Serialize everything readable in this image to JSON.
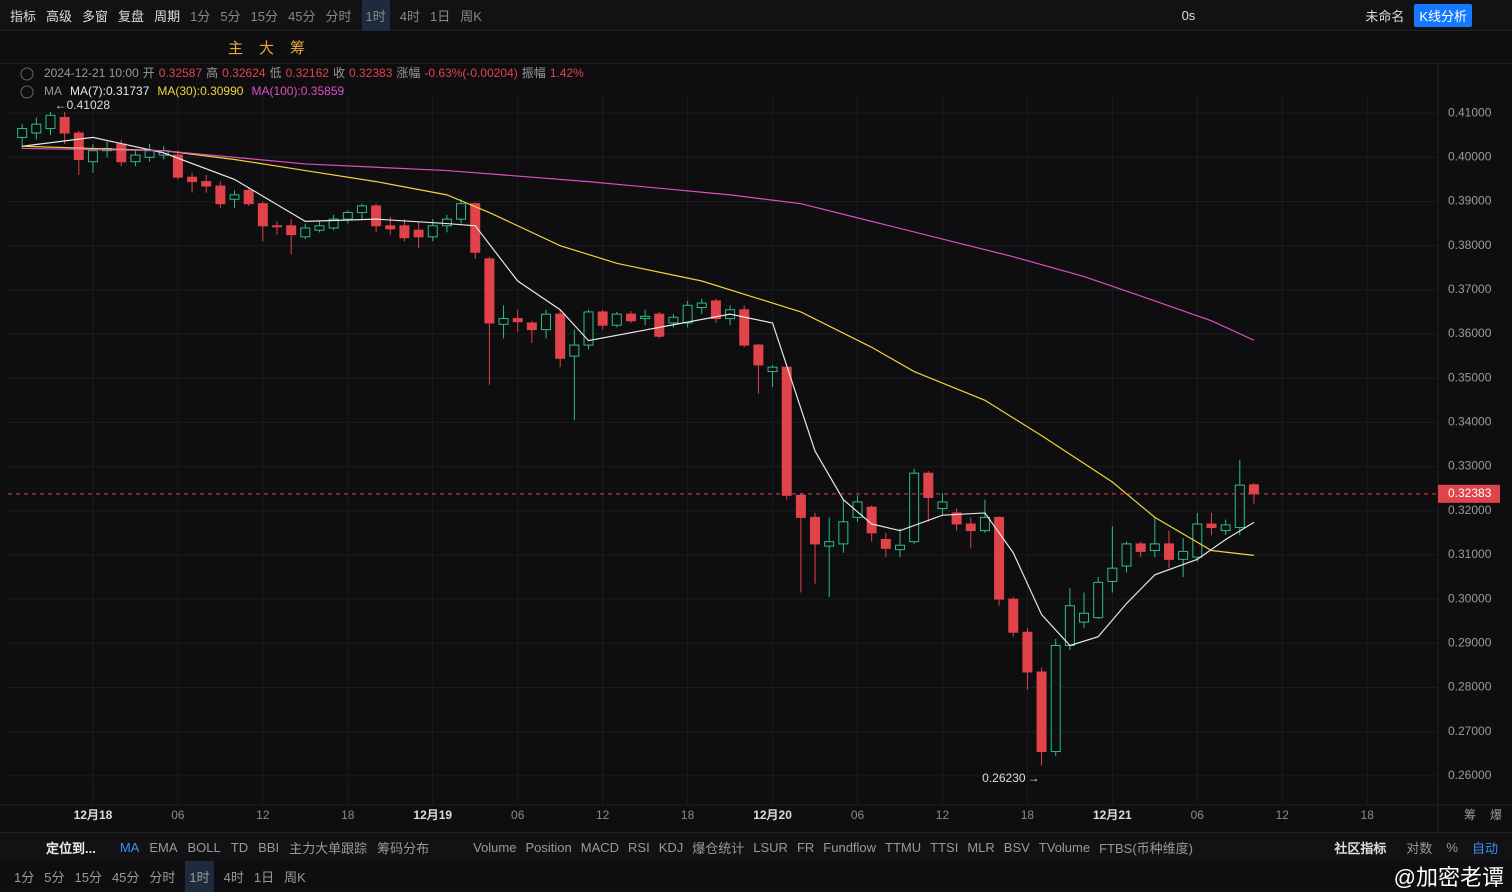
{
  "toolbar": {
    "left": [
      "指标",
      "高级",
      "多窗",
      "复盘",
      "周期"
    ],
    "periods": [
      "1分",
      "5分",
      "15分",
      "45分",
      "分时",
      "1时",
      "4时",
      "1日",
      "周K"
    ],
    "active_period_index": 5,
    "right": [
      "0s",
      "未命名",
      "K线分析"
    ]
  },
  "drawing_toolbar": {
    "labels": [
      "主",
      "大",
      "筹"
    ]
  },
  "info": {
    "time": "2024-12-21 10:00",
    "labels": [
      "开",
      "高",
      "低",
      "收"
    ],
    "change_label": "涨幅",
    "change": "-0.63%(-0.00204)",
    "amp_label": "振幅",
    "amp": "1.42%",
    "ma_label": "MA"
  },
  "chart_data": {
    "type": "candlestick",
    "up_color": "#2ebd85",
    "down_color": "#e0434a",
    "xlim": [
      -1,
      100
    ],
    "ylim": [
      0.2534,
      0.4141
    ],
    "xticks": [
      {
        "value": 5,
        "label": "12月18"
      },
      {
        "value": 11,
        "label": "06"
      },
      {
        "value": 17,
        "label": "12"
      },
      {
        "value": 23,
        "label": "18"
      },
      {
        "value": 29,
        "label": "12月19"
      },
      {
        "value": 35,
        "label": "06"
      },
      {
        "value": 41,
        "label": "12"
      },
      {
        "value": 47,
        "label": "18"
      },
      {
        "value": 53,
        "label": "12月20"
      },
      {
        "value": 59,
        "label": "06"
      },
      {
        "value": 65,
        "label": "12"
      },
      {
        "value": 71,
        "label": "18"
      },
      {
        "value": 77,
        "label": "12月21"
      },
      {
        "value": 83,
        "label": "06"
      },
      {
        "value": 89,
        "label": "12"
      },
      {
        "value": 95,
        "label": "18"
      }
    ],
    "yticks": [
      {
        "value": 0.41,
        "label": "0.41000"
      },
      {
        "value": 0.4,
        "label": "0.40000"
      },
      {
        "value": 0.39,
        "label": "0.39000"
      },
      {
        "value": 0.38,
        "label": "0.38000"
      },
      {
        "value": 0.37,
        "label": "0.37000"
      },
      {
        "value": 0.36,
        "label": "0.36000"
      },
      {
        "value": 0.35,
        "label": "0.35000"
      },
      {
        "value": 0.34,
        "label": "0.34000"
      },
      {
        "value": 0.33,
        "label": "0.33000"
      },
      {
        "value": 0.32,
        "label": "0.32000"
      },
      {
        "value": 0.31,
        "label": "0.31000"
      },
      {
        "value": 0.3,
        "label": "0.30000"
      },
      {
        "value": 0.29,
        "label": "0.29000"
      },
      {
        "value": 0.28,
        "label": "0.28000"
      },
      {
        "value": 0.27,
        "label": "0.27000"
      },
      {
        "value": 0.26,
        "label": "0.26000"
      }
    ],
    "grid": true,
    "annotations": [
      {
        "index": 3,
        "value": 0.41028,
        "label": "0.41028",
        "side": "right"
      },
      {
        "index": 72,
        "value": 0.2623,
        "label": "0.26230",
        "side": "left"
      }
    ],
    "candles": [
      {
        "open": 0.4045,
        "high": 0.4075,
        "low": 0.402,
        "close": 0.4065
      },
      {
        "open": 0.4055,
        "high": 0.409,
        "low": 0.404,
        "close": 0.4075
      },
      {
        "open": 0.4065,
        "high": 0.4103,
        "low": 0.405,
        "close": 0.4095
      },
      {
        "open": 0.409,
        "high": 0.41028,
        "low": 0.403,
        "close": 0.4055
      },
      {
        "open": 0.4055,
        "high": 0.406,
        "low": 0.396,
        "close": 0.3995
      },
      {
        "open": 0.399,
        "high": 0.403,
        "low": 0.3965,
        "close": 0.4015
      },
      {
        "open": 0.4015,
        "high": 0.4035,
        "low": 0.4,
        "close": 0.402
      },
      {
        "open": 0.403,
        "high": 0.404,
        "low": 0.398,
        "close": 0.399
      },
      {
        "open": 0.399,
        "high": 0.4015,
        "low": 0.398,
        "close": 0.4005
      },
      {
        "open": 0.4,
        "high": 0.403,
        "low": 0.399,
        "close": 0.4015
      },
      {
        "open": 0.4005,
        "high": 0.4025,
        "low": 0.3995,
        "close": 0.4015
      },
      {
        "open": 0.4005,
        "high": 0.4015,
        "low": 0.395,
        "close": 0.3955
      },
      {
        "open": 0.3955,
        "high": 0.3965,
        "low": 0.392,
        "close": 0.3945
      },
      {
        "open": 0.3945,
        "high": 0.396,
        "low": 0.392,
        "close": 0.3935
      },
      {
        "open": 0.3935,
        "high": 0.3945,
        "low": 0.3885,
        "close": 0.3895
      },
      {
        "open": 0.3905,
        "high": 0.3925,
        "low": 0.3885,
        "close": 0.3915
      },
      {
        "open": 0.3925,
        "high": 0.393,
        "low": 0.389,
        "close": 0.3895
      },
      {
        "open": 0.3895,
        "high": 0.39,
        "low": 0.381,
        "close": 0.3845
      },
      {
        "open": 0.3845,
        "high": 0.3855,
        "low": 0.3825,
        "close": 0.3843
      },
      {
        "open": 0.3845,
        "high": 0.386,
        "low": 0.378,
        "close": 0.3825
      },
      {
        "open": 0.382,
        "high": 0.385,
        "low": 0.3815,
        "close": 0.384
      },
      {
        "open": 0.3835,
        "high": 0.3855,
        "low": 0.383,
        "close": 0.3845
      },
      {
        "open": 0.384,
        "high": 0.387,
        "low": 0.3835,
        "close": 0.386
      },
      {
        "open": 0.386,
        "high": 0.388,
        "low": 0.385,
        "close": 0.3875
      },
      {
        "open": 0.3875,
        "high": 0.3895,
        "low": 0.386,
        "close": 0.389
      },
      {
        "open": 0.389,
        "high": 0.3895,
        "low": 0.383,
        "close": 0.3845
      },
      {
        "open": 0.3845,
        "high": 0.3865,
        "low": 0.3825,
        "close": 0.3838
      },
      {
        "open": 0.3845,
        "high": 0.386,
        "low": 0.381,
        "close": 0.3818
      },
      {
        "open": 0.3835,
        "high": 0.3855,
        "low": 0.3795,
        "close": 0.382
      },
      {
        "open": 0.382,
        "high": 0.386,
        "low": 0.381,
        "close": 0.3845
      },
      {
        "open": 0.3845,
        "high": 0.387,
        "low": 0.383,
        "close": 0.386
      },
      {
        "open": 0.386,
        "high": 0.3905,
        "low": 0.385,
        "close": 0.3895
      },
      {
        "open": 0.3895,
        "high": 0.3898,
        "low": 0.377,
        "close": 0.3785
      },
      {
        "open": 0.377,
        "high": 0.3775,
        "low": 0.3485,
        "close": 0.3625
      },
      {
        "open": 0.3622,
        "high": 0.3665,
        "low": 0.359,
        "close": 0.3635
      },
      {
        "open": 0.3635,
        "high": 0.3655,
        "low": 0.3605,
        "close": 0.3628
      },
      {
        "open": 0.3625,
        "high": 0.363,
        "low": 0.358,
        "close": 0.361
      },
      {
        "open": 0.361,
        "high": 0.3655,
        "low": 0.359,
        "close": 0.3645
      },
      {
        "open": 0.3645,
        "high": 0.3655,
        "low": 0.3525,
        "close": 0.3545
      },
      {
        "open": 0.355,
        "high": 0.361,
        "low": 0.3405,
        "close": 0.3575
      },
      {
        "open": 0.3575,
        "high": 0.3655,
        "low": 0.3565,
        "close": 0.365
      },
      {
        "open": 0.365,
        "high": 0.3655,
        "low": 0.361,
        "close": 0.362
      },
      {
        "open": 0.362,
        "high": 0.365,
        "low": 0.3615,
        "close": 0.3645
      },
      {
        "open": 0.3645,
        "high": 0.3652,
        "low": 0.3625,
        "close": 0.363
      },
      {
        "open": 0.3635,
        "high": 0.3655,
        "low": 0.362,
        "close": 0.364
      },
      {
        "open": 0.3645,
        "high": 0.365,
        "low": 0.359,
        "close": 0.3595
      },
      {
        "open": 0.3625,
        "high": 0.3645,
        "low": 0.3615,
        "close": 0.3638
      },
      {
        "open": 0.3625,
        "high": 0.3675,
        "low": 0.3615,
        "close": 0.3665
      },
      {
        "open": 0.366,
        "high": 0.368,
        "low": 0.3645,
        "close": 0.367
      },
      {
        "open": 0.3675,
        "high": 0.368,
        "low": 0.3625,
        "close": 0.3635
      },
      {
        "open": 0.3635,
        "high": 0.3665,
        "low": 0.362,
        "close": 0.3655
      },
      {
        "open": 0.3655,
        "high": 0.3665,
        "low": 0.357,
        "close": 0.3575
      },
      {
        "open": 0.3575,
        "high": 0.3578,
        "low": 0.3465,
        "close": 0.353
      },
      {
        "open": 0.3515,
        "high": 0.353,
        "low": 0.348,
        "close": 0.3525
      },
      {
        "open": 0.3525,
        "high": 0.3525,
        "low": 0.3225,
        "close": 0.3235
      },
      {
        "open": 0.3235,
        "high": 0.324,
        "low": 0.3015,
        "close": 0.3185
      },
      {
        "open": 0.3185,
        "high": 0.3195,
        "low": 0.3035,
        "close": 0.3125
      },
      {
        "open": 0.312,
        "high": 0.3185,
        "low": 0.3005,
        "close": 0.313
      },
      {
        "open": 0.3125,
        "high": 0.3225,
        "low": 0.3105,
        "close": 0.3175
      },
      {
        "open": 0.3185,
        "high": 0.3235,
        "low": 0.3175,
        "close": 0.322
      },
      {
        "open": 0.3208,
        "high": 0.3212,
        "low": 0.313,
        "close": 0.315
      },
      {
        "open": 0.3135,
        "high": 0.315,
        "low": 0.3095,
        "close": 0.3115
      },
      {
        "open": 0.3112,
        "high": 0.316,
        "low": 0.3095,
        "close": 0.3122
      },
      {
        "open": 0.313,
        "high": 0.3295,
        "low": 0.3125,
        "close": 0.3285
      },
      {
        "open": 0.3285,
        "high": 0.329,
        "low": 0.3175,
        "close": 0.323
      },
      {
        "open": 0.3205,
        "high": 0.324,
        "low": 0.319,
        "close": 0.322
      },
      {
        "open": 0.3195,
        "high": 0.3205,
        "low": 0.3155,
        "close": 0.317
      },
      {
        "open": 0.317,
        "high": 0.3185,
        "low": 0.3115,
        "close": 0.3155
      },
      {
        "open": 0.3155,
        "high": 0.3225,
        "low": 0.315,
        "close": 0.3185
      },
      {
        "open": 0.3185,
        "high": 0.3187,
        "low": 0.2985,
        "close": 0.3
      },
      {
        "open": 0.3,
        "high": 0.3005,
        "low": 0.2915,
        "close": 0.2925
      },
      {
        "open": 0.2925,
        "high": 0.2935,
        "low": 0.2795,
        "close": 0.2835
      },
      {
        "open": 0.2835,
        "high": 0.2845,
        "low": 0.2623,
        "close": 0.2655
      },
      {
        "open": 0.2655,
        "high": 0.291,
        "low": 0.2645,
        "close": 0.2895
      },
      {
        "open": 0.2895,
        "high": 0.3025,
        "low": 0.2885,
        "close": 0.2985
      },
      {
        "open": 0.2948,
        "high": 0.3015,
        "low": 0.2935,
        "close": 0.2968
      },
      {
        "open": 0.2958,
        "high": 0.305,
        "low": 0.2955,
        "close": 0.3038
      },
      {
        "open": 0.304,
        "high": 0.3165,
        "low": 0.3015,
        "close": 0.307
      },
      {
        "open": 0.3075,
        "high": 0.313,
        "low": 0.306,
        "close": 0.3125
      },
      {
        "open": 0.3125,
        "high": 0.313,
        "low": 0.3095,
        "close": 0.3108
      },
      {
        "open": 0.311,
        "high": 0.3185,
        "low": 0.3095,
        "close": 0.3125
      },
      {
        "open": 0.3125,
        "high": 0.3155,
        "low": 0.307,
        "close": 0.309
      },
      {
        "open": 0.309,
        "high": 0.3138,
        "low": 0.305,
        "close": 0.3108
      },
      {
        "open": 0.3095,
        "high": 0.3195,
        "low": 0.3085,
        "close": 0.317
      },
      {
        "open": 0.317,
        "high": 0.3195,
        "low": 0.3145,
        "close": 0.3162
      },
      {
        "open": 0.3155,
        "high": 0.318,
        "low": 0.3145,
        "close": 0.3168
      },
      {
        "open": 0.3162,
        "high": 0.3315,
        "low": 0.3145,
        "close": 0.3258
      },
      {
        "open": 0.32587,
        "high": 0.32624,
        "low": 0.32162,
        "close": 0.32383
      }
    ],
    "ma": [
      {
        "name": "MA(7):0.31737",
        "color": "#e6e6e6",
        "x": [
          0,
          5,
          10,
          15,
          20,
          25,
          30,
          32,
          35,
          38,
          40,
          45,
          50,
          53,
          56,
          58,
          60,
          62,
          65,
          68,
          70,
          72,
          74,
          76,
          78,
          80,
          83,
          85,
          87
        ],
        "values": [
          0.4025,
          0.4045,
          0.401,
          0.395,
          0.3855,
          0.386,
          0.385,
          0.3845,
          0.372,
          0.3655,
          0.3585,
          0.3615,
          0.3645,
          0.3625,
          0.3335,
          0.3225,
          0.317,
          0.3155,
          0.319,
          0.3195,
          0.3105,
          0.2965,
          0.2895,
          0.2915,
          0.299,
          0.3055,
          0.309,
          0.3135,
          0.31737
        ]
      },
      {
        "name": "MA(30):0.30990",
        "color": "#f0d43a",
        "x": [
          0,
          10,
          15,
          20,
          25,
          30,
          33,
          38,
          42,
          48,
          52,
          55,
          60,
          63,
          68,
          72,
          77,
          80,
          84,
          87
        ],
        "values": [
          0.4025,
          0.4015,
          0.3995,
          0.397,
          0.3945,
          0.3915,
          0.3875,
          0.38,
          0.376,
          0.372,
          0.368,
          0.365,
          0.357,
          0.3515,
          0.345,
          0.337,
          0.3265,
          0.3185,
          0.311,
          0.3099
        ]
      },
      {
        "name": "MA(100):0.35859",
        "color": "#d94fc4",
        "x": [
          0,
          10,
          20,
          30,
          40,
          50,
          55,
          60,
          65,
          70,
          75,
          80,
          84,
          87
        ],
        "values": [
          0.402,
          0.4015,
          0.3985,
          0.397,
          0.3945,
          0.3915,
          0.3895,
          0.3855,
          0.3815,
          0.3775,
          0.373,
          0.3675,
          0.363,
          0.35859
        ]
      }
    ]
  },
  "indicator_bar": {
    "locate": "定位到...",
    "main": [
      "MA",
      "EMA",
      "BOLL",
      "TD",
      "BBI",
      "主力大单跟踪",
      "筹码分布"
    ],
    "sub": [
      "Volume",
      "Position",
      "MACD",
      "RSI",
      "KDJ",
      "爆仓统计",
      "LSUR",
      "FR",
      "Fundflow",
      "TTMU",
      "TTSI",
      "MLR",
      "BSV",
      "TVolume",
      "FTBS(币种维度)"
    ],
    "right": [
      "社区指标",
      "对数",
      "%",
      "自动"
    ]
  },
  "corner": [
    "筹",
    "爆"
  ],
  "watermark": "@加密老谭"
}
